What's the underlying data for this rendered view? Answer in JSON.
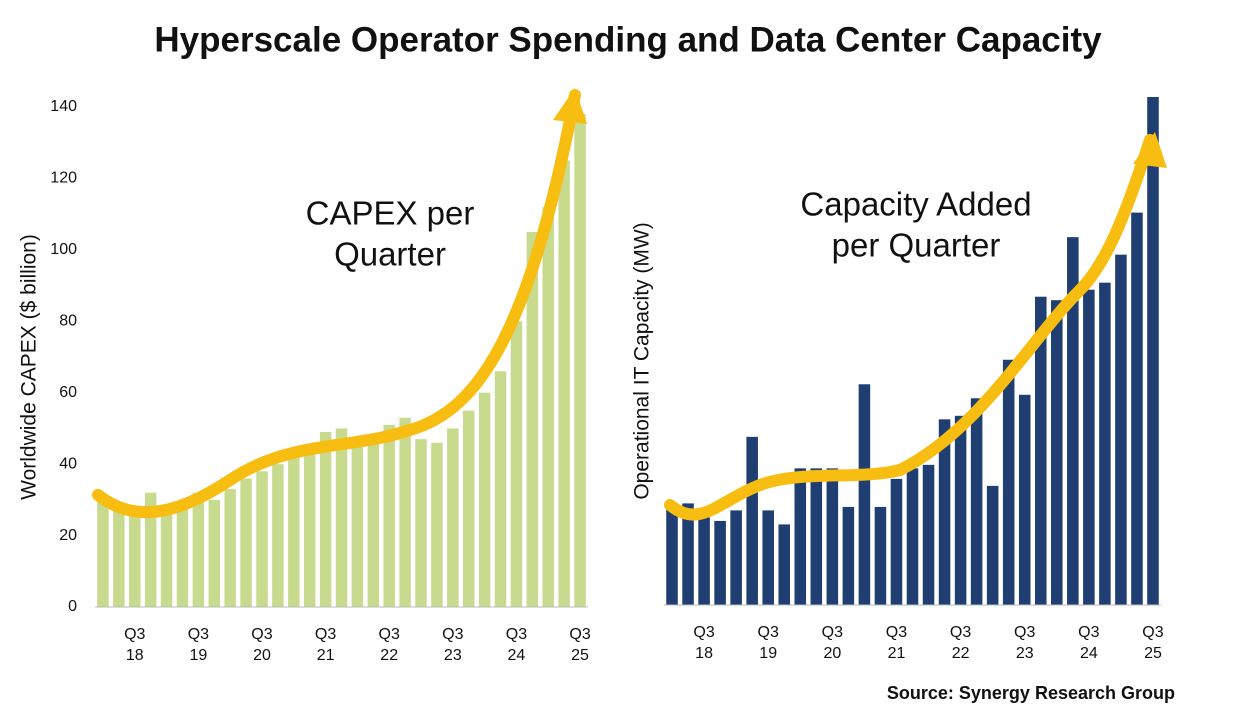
{
  "title": "Hyperscale Operator Spending and Data Center Capacity",
  "source": "Source: Synergy Research Group",
  "chart_data": [
    {
      "type": "bar",
      "ylabel": "Worldwide CAPEX ($ billion)",
      "annotation": [
        "CAPEX per",
        "Quarter"
      ],
      "categories": [
        null,
        null,
        "Q3 18",
        null,
        null,
        null,
        "Q3 19",
        null,
        null,
        null,
        "Q3 20",
        null,
        null,
        null,
        "Q3 21",
        null,
        null,
        null,
        "Q3 22",
        null,
        null,
        null,
        "Q3 23",
        null,
        null,
        null,
        "Q3 24",
        null,
        null,
        null,
        "Q3 25"
      ],
      "values": [
        31,
        29,
        27,
        32,
        28,
        29,
        32,
        30,
        33,
        36,
        38,
        40,
        42,
        45,
        49,
        50,
        47,
        48,
        51,
        53,
        47,
        46,
        50,
        55,
        60,
        66,
        80,
        105,
        112,
        125,
        138
      ],
      "color": "#c8da8e",
      "ylim": [
        0,
        140
      ],
      "yticks": [
        0,
        20,
        40,
        60,
        80,
        100,
        120,
        140
      ]
    },
    {
      "type": "bar",
      "ylabel": "Operational IT Capacity (MW)",
      "annotation": [
        "Capacity Added",
        "per Quarter"
      ],
      "categories": [
        null,
        null,
        "Q3 18",
        null,
        null,
        null,
        "Q3 19",
        null,
        null,
        null,
        "Q3 20",
        null,
        null,
        null,
        "Q3 21",
        null,
        null,
        null,
        "Q3 22",
        null,
        null,
        null,
        "Q3 23",
        null,
        null,
        null,
        "Q3 24",
        null,
        null,
        null,
        "Q3 25"
      ],
      "values": [
        29,
        29,
        25,
        24,
        27,
        48,
        27,
        23,
        39,
        39,
        39,
        28,
        63,
        28,
        36,
        39,
        40,
        53,
        54,
        59,
        34,
        70,
        60,
        88,
        87,
        105,
        90,
        92,
        100,
        112,
        145
      ],
      "color": "#1f3e72",
      "ylim": [
        0,
        145
      ]
    }
  ]
}
